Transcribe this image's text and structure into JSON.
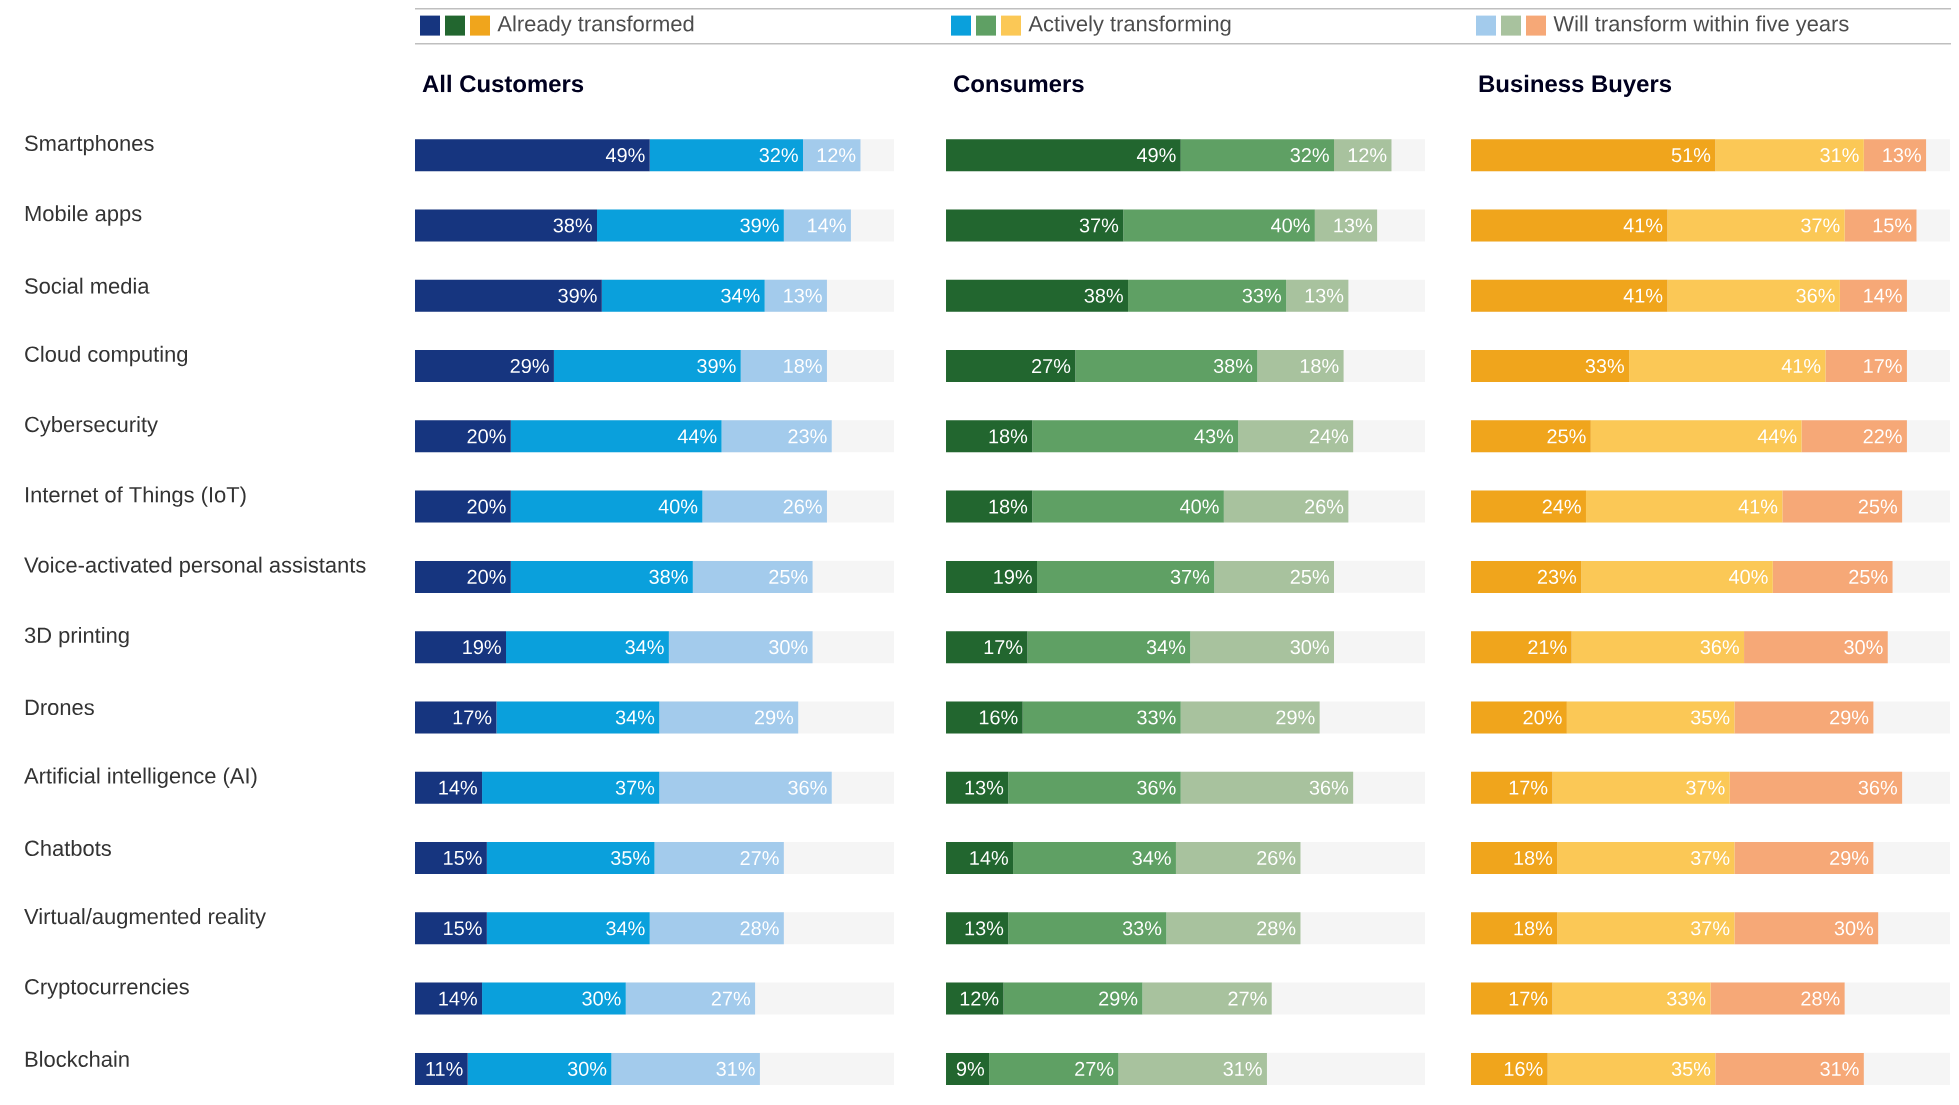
{
  "chart_data": [
    {
      "type": "bar",
      "title": "All Customers",
      "orientation": "horizontal",
      "stacked": true,
      "xlim": [
        0,
        100
      ],
      "tick_labels": "y",
      "legend": "top",
      "categories": [
        "Smartphones",
        "Mobile apps",
        "Social media",
        "Cloud computing",
        "Cybersecurity",
        "Internet of Things (IoT)",
        "Voice-activated personal assistants",
        "3D printing",
        "Drones",
        "Artificial intelligence (AI)",
        "Chatbots",
        "Virtual/augmented reality",
        "Cryptocurrencies",
        "Blockchain"
      ],
      "series": [
        {
          "name": "Already transformed",
          "color": "#16357f",
          "values": [
            49,
            38,
            39,
            29,
            20,
            20,
            20,
            19,
            17,
            14,
            15,
            15,
            14,
            11
          ],
          "value_labels": [
            "49%",
            "38%",
            "39%",
            "29%",
            "20%",
            "20%",
            "20%",
            "19%",
            "17%",
            "14%",
            "15%",
            "15%",
            "14%",
            "11%"
          ]
        },
        {
          "name": "Actively transforming",
          "color": "#0aa0dc",
          "values": [
            32,
            39,
            34,
            39,
            44,
            40,
            38,
            34,
            34,
            37,
            35,
            34,
            30,
            30
          ],
          "value_labels": [
            "32%",
            "39%",
            "34%",
            "39%",
            "44%",
            "40%",
            "38%",
            "34%",
            "34%",
            "37%",
            "35%",
            "34%",
            "30%",
            "30%"
          ]
        },
        {
          "name": "Will transform within five years",
          "color": "#a3cbec",
          "values": [
            12,
            14,
            13,
            18,
            23,
            26,
            25,
            30,
            29,
            36,
            27,
            28,
            27,
            31
          ],
          "value_labels": [
            "12%",
            "14%",
            "13%",
            "18%",
            "23%",
            "26%",
            "25%",
            "30%",
            "29%",
            "36%",
            "27%",
            "28%",
            "27%",
            "31%"
          ]
        }
      ]
    },
    {
      "type": "bar",
      "title": "Consumers",
      "orientation": "horizontal",
      "stacked": true,
      "xlim": [
        0,
        100
      ],
      "tick_labels": false,
      "categories": [
        null,
        null,
        null,
        null,
        null,
        null,
        null,
        null,
        null,
        null,
        null,
        null,
        null,
        null
      ],
      "series": [
        {
          "color": "#22662f",
          "values": [
            49,
            37,
            38,
            27,
            18,
            18,
            19,
            17,
            16,
            13,
            14,
            13,
            12,
            9
          ],
          "value_labels": [
            "49%",
            "37%",
            "38%",
            "27%",
            "18%",
            "18%",
            "19%",
            "17%",
            "16%",
            "13%",
            "14%",
            "13%",
            "12%",
            "9%"
          ]
        },
        {
          "color": "#5fa064",
          "values": [
            32,
            40,
            33,
            38,
            43,
            40,
            37,
            34,
            33,
            36,
            34,
            33,
            29,
            27
          ],
          "value_labels": [
            "32%",
            "40%",
            "33%",
            "38%",
            "43%",
            "40%",
            "37%",
            "34%",
            "33%",
            "36%",
            "34%",
            "33%",
            "29%",
            "27%"
          ]
        },
        {
          "color": "#a8c29e",
          "values": [
            12,
            13,
            13,
            18,
            24,
            26,
            25,
            30,
            29,
            36,
            26,
            28,
            27,
            31
          ],
          "value_labels": [
            "12%",
            "13%",
            "13%",
            "18%",
            "24%",
            "26%",
            "25%",
            "30%",
            "29%",
            "36%",
            "26%",
            "28%",
            "27%",
            "31%"
          ]
        }
      ]
    },
    {
      "type": "bar",
      "title": "Business Buyers",
      "orientation": "horizontal",
      "stacked": true,
      "xlim": [
        0,
        100
      ],
      "tick_labels": false,
      "categories": [
        null,
        null,
        null,
        null,
        null,
        null,
        null,
        null,
        null,
        null,
        null,
        null,
        null,
        null
      ],
      "series": [
        {
          "color": "#f0a51c",
          "values": [
            51,
            41,
            41,
            33,
            25,
            24,
            23,
            21,
            20,
            17,
            18,
            18,
            17,
            16
          ],
          "value_labels": [
            "51%",
            "41%",
            "41%",
            "33%",
            "25%",
            "24%",
            "23%",
            "21%",
            "20%",
            "17%",
            "18%",
            "18%",
            "17%",
            "16%"
          ]
        },
        {
          "color": "#fbc856",
          "values": [
            31,
            37,
            36,
            41,
            44,
            41,
            40,
            36,
            35,
            37,
            37,
            37,
            33,
            35
          ],
          "value_labels": [
            "31%",
            "37%",
            "36%",
            "41%",
            "44%",
            "41%",
            "40%",
            "36%",
            "35%",
            "37%",
            "37%",
            "37%",
            "33%",
            "35%"
          ]
        },
        {
          "color": "#f6a877",
          "values": [
            13,
            15,
            14,
            17,
            22,
            25,
            25,
            30,
            29,
            36,
            29,
            30,
            28,
            31
          ],
          "value_labels": [
            "13%",
            "15%",
            "14%",
            "17%",
            "22%",
            "25%",
            "25%",
            "30%",
            "29%",
            "36%",
            "29%",
            "30%",
            "28%",
            "31%"
          ]
        }
      ]
    }
  ]
}
